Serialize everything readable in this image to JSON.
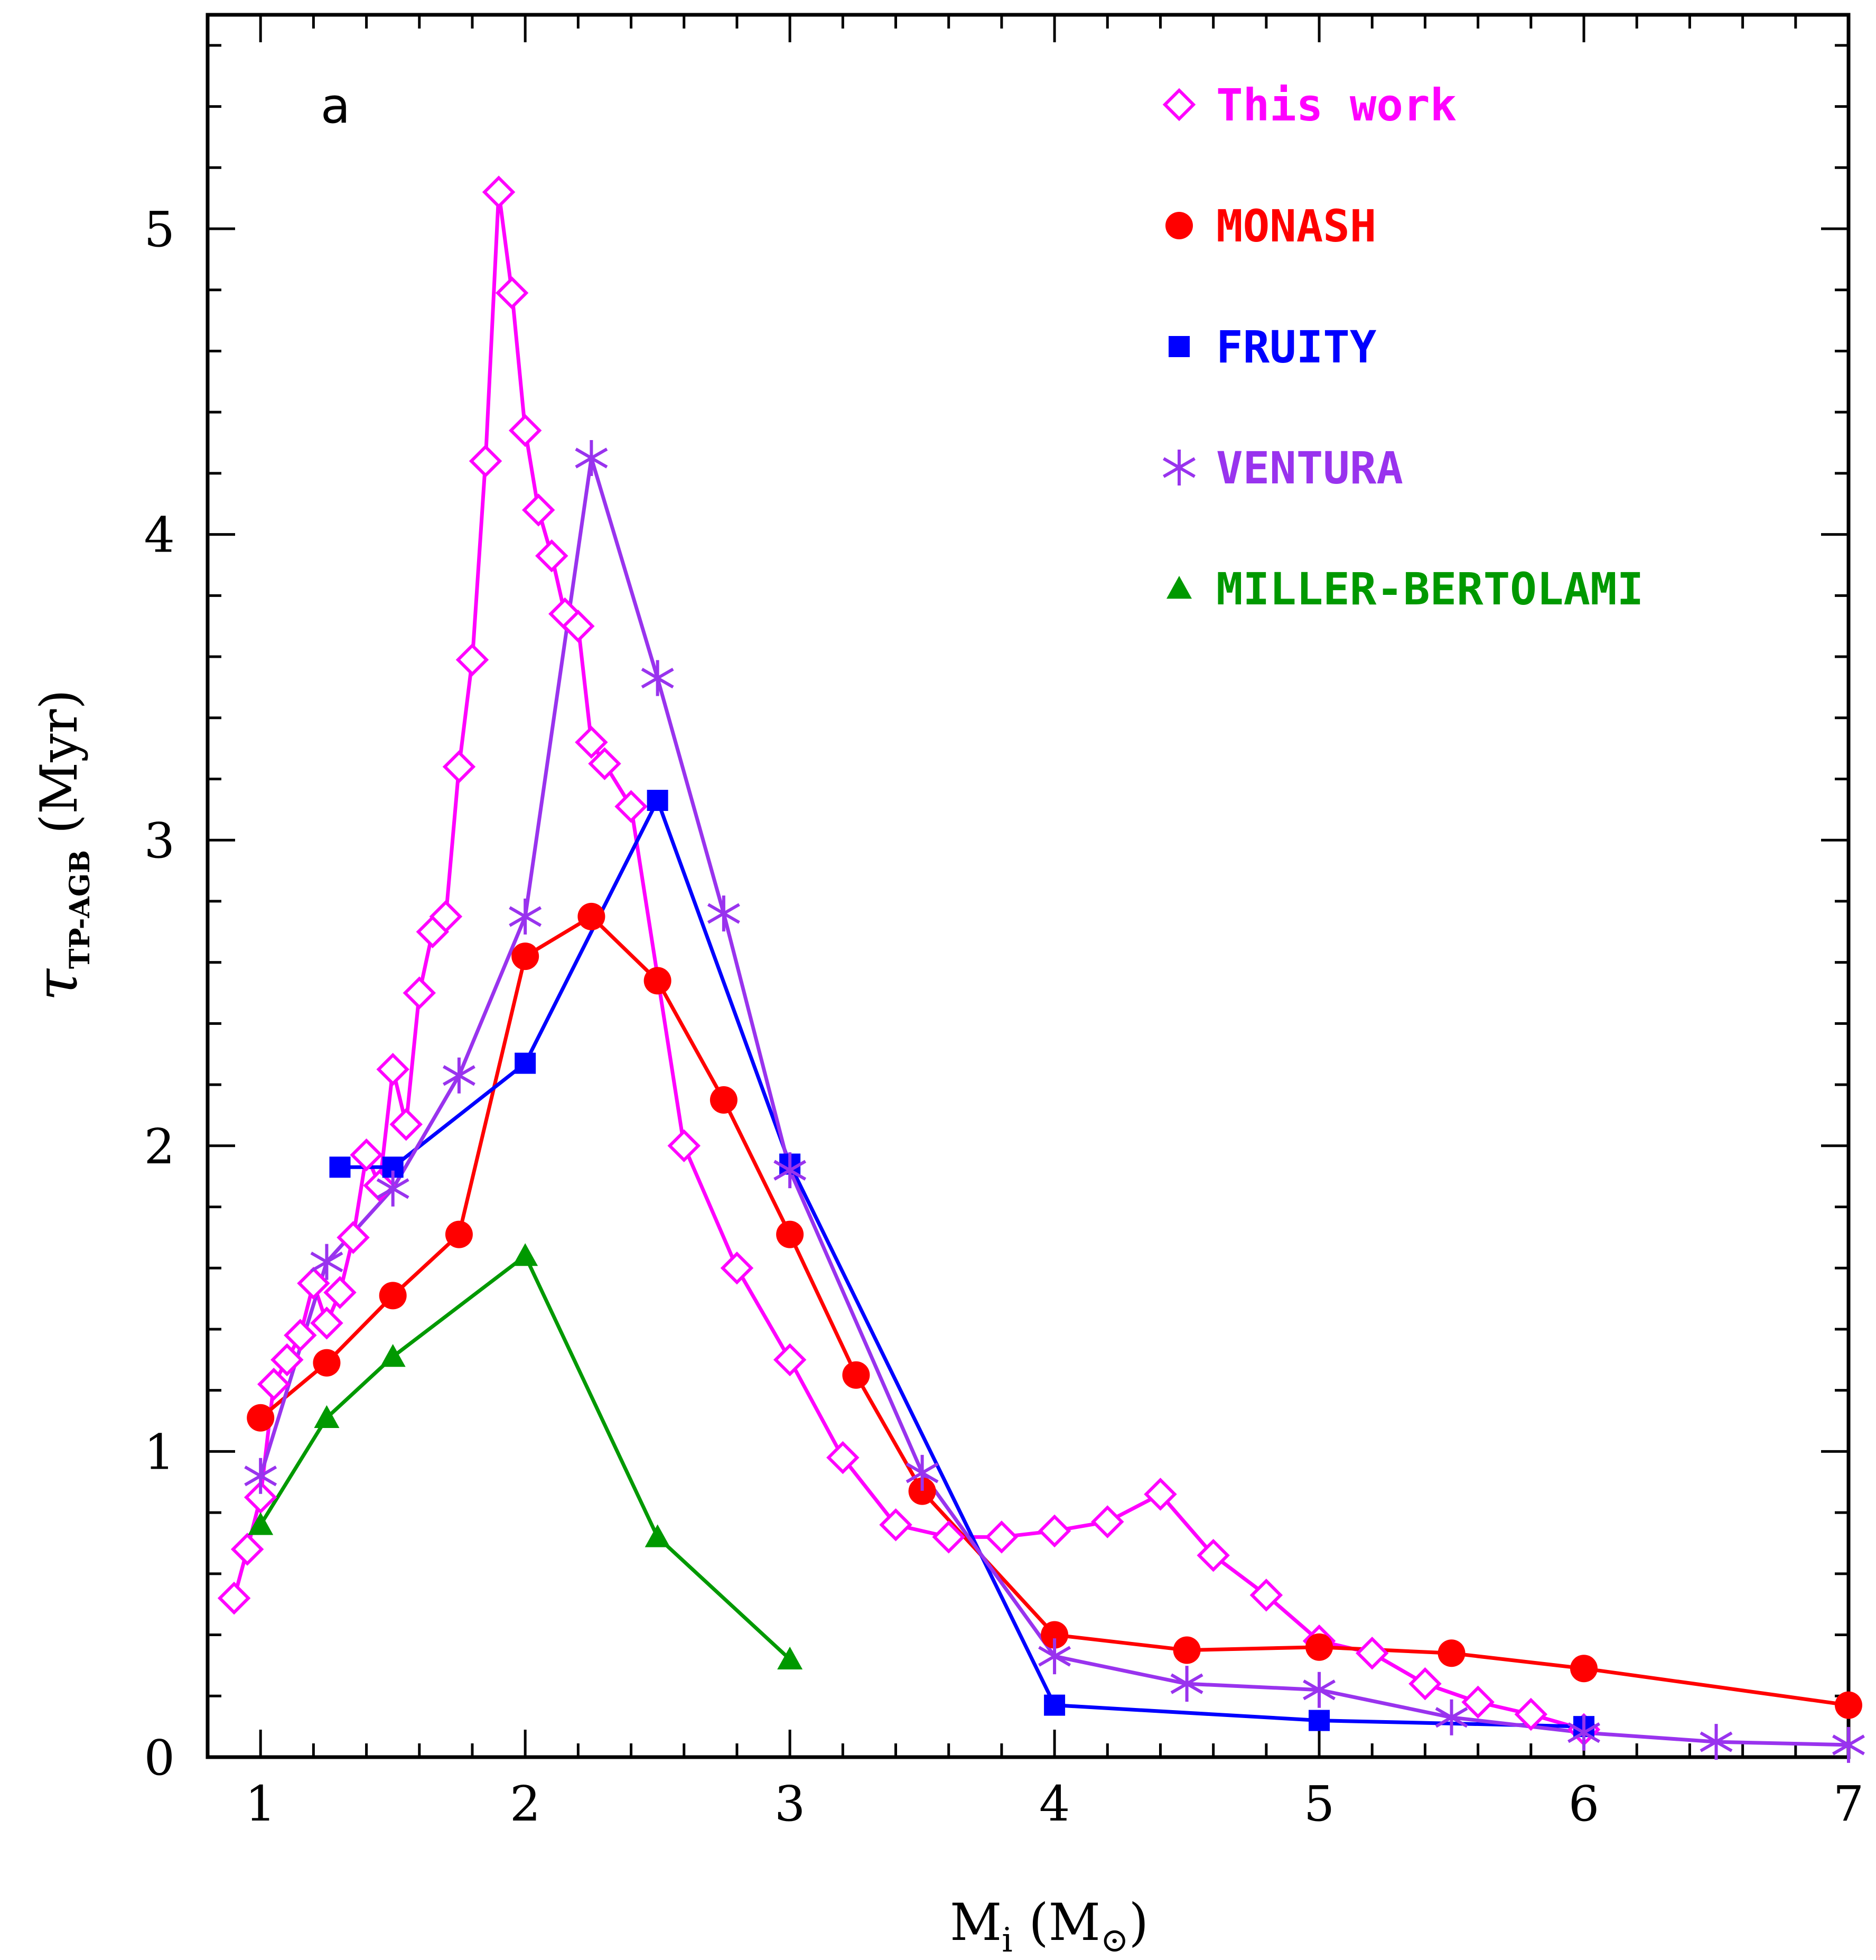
{
  "chart_data": {
    "type": "line",
    "panel_label": "a",
    "xlabel": {
      "main": "M",
      "sub": "i",
      "rest": " (M",
      "sun": "⊙",
      "close": ")"
    },
    "ylabel": {
      "main": "τ",
      "sub": "TP-AGB",
      "rest": " (Myr)"
    },
    "xlim": [
      0.8,
      7.0
    ],
    "ylim": [
      0,
      5.7
    ],
    "xticks": [
      1,
      2,
      3,
      4,
      5,
      6,
      7
    ],
    "yticks": [
      0,
      1,
      2,
      3,
      4,
      5
    ],
    "xtick_labels": [
      "1",
      "2",
      "3",
      "4",
      "5",
      "6",
      "7"
    ],
    "ytick_labels": [
      "0",
      "1",
      "2",
      "3",
      "4",
      "5"
    ],
    "legend_position": "top-right",
    "series": [
      {
        "name": "This work",
        "color": "#ff00ff",
        "marker": "open-diamond",
        "x": [
          0.9,
          0.95,
          1.0,
          1.05,
          1.1,
          1.15,
          1.2,
          1.25,
          1.3,
          1.35,
          1.4,
          1.45,
          1.5,
          1.55,
          1.6,
          1.65,
          1.7,
          1.75,
          1.8,
          1.85,
          1.9,
          1.95,
          2.0,
          2.05,
          2.1,
          2.15,
          2.2,
          2.25,
          2.3,
          2.4,
          2.6,
          2.8,
          3.0,
          3.2,
          3.4,
          3.6,
          3.8,
          4.0,
          4.2,
          4.4,
          4.6,
          4.8,
          5.0,
          5.2,
          5.4,
          5.6,
          5.8,
          6.0
        ],
        "y": [
          0.52,
          0.68,
          0.85,
          1.22,
          1.3,
          1.38,
          1.55,
          1.42,
          1.52,
          1.7,
          1.97,
          1.87,
          2.25,
          2.07,
          2.5,
          2.7,
          2.75,
          3.24,
          3.59,
          4.24,
          5.12,
          4.79,
          4.34,
          4.08,
          3.93,
          3.74,
          3.7,
          3.32,
          3.25,
          3.11,
          2.0,
          1.6,
          1.3,
          0.98,
          0.76,
          0.72,
          0.72,
          0.74,
          0.77,
          0.86,
          0.66,
          0.53,
          0.38,
          0.34,
          0.24,
          0.18,
          0.14,
          0.09
        ]
      },
      {
        "name": "MONASH",
        "color": "#ff0000",
        "marker": "filled-circle",
        "x": [
          1.0,
          1.25,
          1.5,
          1.75,
          2.0,
          2.25,
          2.5,
          2.75,
          3.0,
          3.25,
          3.5,
          4.0,
          4.5,
          5.0,
          5.5,
          6.0,
          7.0
        ],
        "y": [
          1.11,
          1.29,
          1.51,
          1.71,
          2.62,
          2.75,
          2.54,
          2.15,
          1.71,
          1.25,
          0.87,
          0.4,
          0.35,
          0.36,
          0.34,
          0.29,
          0.17
        ]
      },
      {
        "name": "FRUITY",
        "color": "#0000ff",
        "marker": "filled-square",
        "x": [
          1.3,
          1.5,
          2.0,
          2.5,
          3.0,
          4.0,
          5.0,
          6.0
        ],
        "y": [
          1.93,
          1.93,
          2.27,
          3.13,
          1.94,
          0.17,
          0.12,
          0.1
        ]
      },
      {
        "name": "VENTURA",
        "color": "#9933ee",
        "marker": "asterisk",
        "x": [
          1.0,
          1.25,
          1.5,
          1.75,
          2.0,
          2.25,
          2.5,
          2.75,
          3.0,
          3.5,
          4.0,
          4.5,
          5.0,
          5.5,
          6.0,
          6.5,
          7.0
        ],
        "y": [
          0.92,
          1.62,
          1.86,
          2.23,
          2.75,
          4.25,
          3.53,
          2.76,
          1.92,
          0.93,
          0.33,
          0.24,
          0.22,
          0.13,
          0.08,
          0.05,
          0.04
        ]
      },
      {
        "name": "MILLER-BERTOLAMI",
        "color": "#009900",
        "marker": "filled-triangle",
        "x": [
          1.0,
          1.25,
          1.5,
          2.0,
          2.5,
          3.0
        ],
        "y": [
          0.76,
          1.11,
          1.31,
          1.64,
          0.72,
          0.32
        ]
      }
    ]
  }
}
